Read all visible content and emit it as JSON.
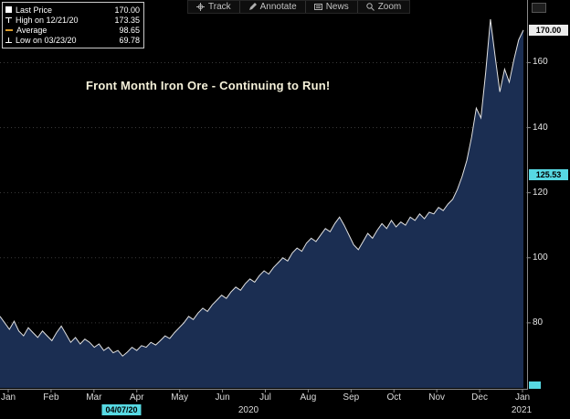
{
  "chart_data": {
    "type": "area",
    "title": "Front Month Iron Ore - Continuing to Run!",
    "series_name": "Last Price",
    "xlabel": "",
    "ylabel": "",
    "xticks": [
      "Jan",
      "Feb",
      "Mar",
      "Apr",
      "May",
      "Jun",
      "Jul",
      "Aug",
      "Sep",
      "Oct",
      "Nov",
      "Dec",
      "Jan"
    ],
    "yticks": [
      80,
      100,
      120,
      140,
      160
    ],
    "ylim": [
      60,
      177
    ],
    "grid": "horizontal-dotted",
    "legend_position": "top-left",
    "values": [
      82,
      80,
      78,
      80.5,
      77.5,
      76,
      78.5,
      77,
      75.5,
      77.5,
      76,
      74.5,
      77,
      79,
      76.5,
      74,
      75.5,
      73.5,
      75,
      74,
      72.5,
      73.5,
      71.5,
      72.5,
      70.8,
      71.5,
      69.8,
      71,
      72.5,
      71.5,
      73,
      72.5,
      74,
      73.2,
      74.5,
      76,
      75.2,
      77,
      78.5,
      80,
      82,
      81,
      83,
      84.5,
      83.5,
      85.5,
      87,
      88.5,
      87.5,
      89.5,
      91,
      90,
      92,
      93.5,
      92.5,
      94.5,
      96,
      95,
      97,
      98.5,
      100,
      99,
      101.5,
      103,
      102,
      104.5,
      106,
      105,
      107,
      109,
      108,
      110.5,
      112.5,
      110,
      107,
      104,
      102.5,
      105,
      107.5,
      106,
      108.5,
      110.5,
      109,
      111.5,
      109.5,
      111,
      110,
      112.5,
      111.5,
      113.5,
      112,
      114,
      113.5,
      115.5,
      114.5,
      116.5,
      118,
      121,
      125,
      130,
      137,
      146,
      143,
      157,
      173.35,
      162,
      151,
      158,
      154,
      161,
      167,
      170
    ],
    "stats": {
      "last": 170.0,
      "high": 173.35,
      "high_date": "12/21/20",
      "average": 98.65,
      "low": 69.78,
      "low_date": "03/23/20"
    }
  },
  "toolbar": {
    "items": [
      {
        "label": "Track",
        "icon": "track-icon"
      },
      {
        "label": "Annotate",
        "icon": "annotate-icon"
      },
      {
        "label": "News",
        "icon": "news-icon"
      },
      {
        "label": "Zoom",
        "icon": "zoom-icon"
      }
    ]
  },
  "legend": {
    "rows": [
      {
        "marker": "square",
        "label": "Last Price",
        "value": "170.00"
      },
      {
        "marker": "high",
        "label": "High on 12/21/20",
        "value": "173.35"
      },
      {
        "marker": "avg",
        "label": "Average",
        "value": "98.65"
      },
      {
        "marker": "low",
        "label": "Low on 03/23/20",
        "value": "69.78"
      }
    ]
  },
  "y_axis": {
    "last_price_label": "170.00",
    "crosshair_value": "125.53"
  },
  "x_axis": {
    "years": [
      "2020",
      "2021"
    ],
    "crosshair_date": "04/07/20"
  },
  "colors": {
    "background": "#000000",
    "area_fill": "#1b2e52",
    "line_color": "#e2e2e2",
    "grid_color": "#3a3a3a",
    "axis_color": "#8a8a8a",
    "badge_white": "#ececec",
    "badge_cyan": "#57d9e3",
    "title_color": "#f5f1da",
    "average_marker": "#d99a2b"
  }
}
